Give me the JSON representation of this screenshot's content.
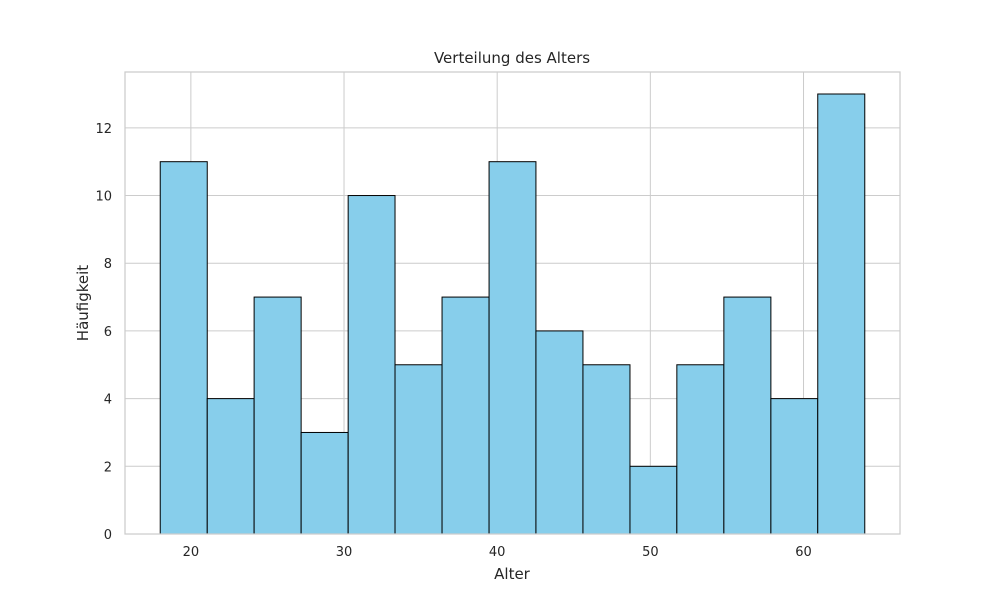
{
  "chart_data": {
    "type": "bar",
    "subtype": "histogram",
    "title": "Verteilung des Alters",
    "xlabel": "Alter",
    "ylabel": "Häufigkeit",
    "bin_edges": [
      18,
      21.07,
      24.13,
      27.2,
      30.27,
      33.33,
      36.4,
      39.47,
      42.53,
      45.6,
      48.67,
      51.73,
      54.8,
      57.87,
      60.93,
      64
    ],
    "values": [
      11,
      4,
      7,
      3,
      10,
      5,
      7,
      11,
      6,
      5,
      2,
      5,
      7,
      4,
      13
    ],
    "xlim": [
      15.7,
      66.3
    ],
    "ylim": [
      0,
      13.65
    ],
    "xticks": [
      20,
      30,
      40,
      50,
      60
    ],
    "yticks": [
      0,
      2,
      4,
      6,
      8,
      10,
      12
    ],
    "grid": true,
    "colors": {
      "bar_fill": "#87ceeb",
      "bar_edge": "#000000",
      "grid": "#cccccc"
    }
  }
}
